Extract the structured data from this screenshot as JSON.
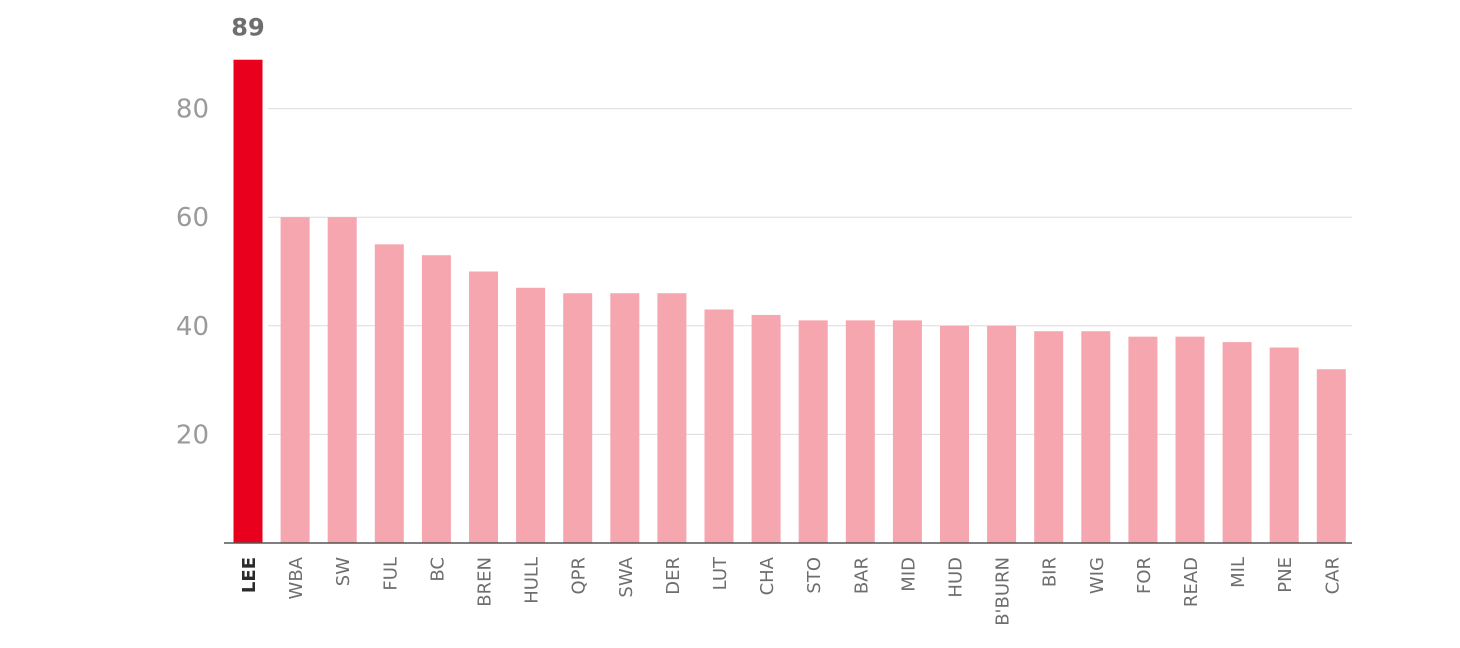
{
  "chart_data": {
    "type": "bar",
    "title": "",
    "xlabel": "",
    "ylabel": "",
    "categories": [
      "LEE",
      "WBA",
      "SW",
      "FUL",
      "BC",
      "BREN",
      "HULL",
      "QPR",
      "SWA",
      "DER",
      "LUT",
      "CHA",
      "STO",
      "BAR",
      "MID",
      "HUD",
      "B'BURN",
      "BIR",
      "WIG",
      "FOR",
      "READ",
      "MIL",
      "PNE",
      "CAR"
    ],
    "values": [
      89,
      60,
      60,
      55,
      53,
      50,
      47,
      46,
      46,
      46,
      43,
      42,
      41,
      41,
      41,
      40,
      40,
      39,
      39,
      38,
      38,
      37,
      36,
      32
    ],
    "highlight_index": 0,
    "highlight_label": "89",
    "y_ticks": [
      20,
      40,
      60,
      80
    ],
    "ylim": [
      0,
      89
    ],
    "grid": true,
    "legend": "none",
    "colors": {
      "highlight": "#e8001c",
      "bar": "#f5a6af",
      "grid": "#dcdcdc",
      "axis": "#555555"
    }
  }
}
